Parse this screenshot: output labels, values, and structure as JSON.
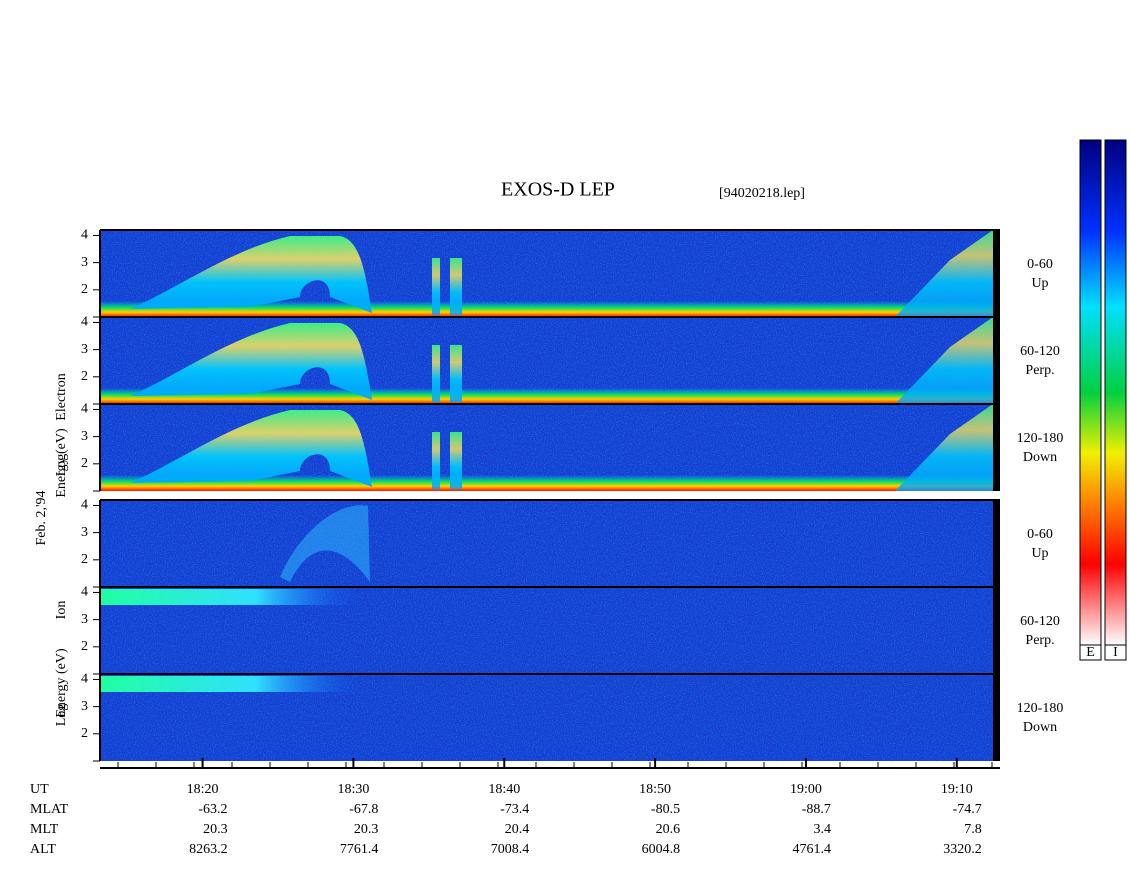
{
  "chart_data": {
    "type": "spectrogram",
    "title": "EXOS-D LEP",
    "file": "[94020218.lep]",
    "date": "Feb. 2,'94",
    "groups": [
      {
        "ylabel": [
          "Log",
          "Electron",
          "Energy (eV)"
        ],
        "panels": [
          {
            "angle": "0-60",
            "direction": "Up"
          },
          {
            "angle": "60-120",
            "direction": "Perp."
          },
          {
            "angle": "120-180",
            "direction": "Down"
          }
        ]
      },
      {
        "ylabel": [
          "Log",
          "Ion",
          "Energy (eV)"
        ],
        "panels": [
          {
            "angle": "0-60",
            "direction": "Up"
          },
          {
            "angle": "60-120",
            "direction": "Perp."
          },
          {
            "angle": "120-180",
            "direction": "Down"
          }
        ]
      }
    ],
    "ylim": [
      1,
      4.2
    ],
    "yticks": [
      2,
      3,
      4
    ],
    "xlim": [
      13.2,
      72.4
    ],
    "xticks": [
      {
        "value": 20,
        "label": "18:20"
      },
      {
        "value": 30,
        "label": "18:30"
      },
      {
        "value": 40,
        "label": "18:40"
      },
      {
        "value": 50,
        "label": "18:50"
      },
      {
        "value": 60,
        "label": "19:00"
      },
      {
        "value": 70,
        "label": "19:10"
      }
    ],
    "xlabel": "UT",
    "ephemeris": [
      {
        "name": "MLAT",
        "values": [
          -63.2,
          -67.8,
          -73.4,
          -80.5,
          -88.7,
          -74.7
        ]
      },
      {
        "name": "MLT",
        "values": [
          20.3,
          20.3,
          20.4,
          20.6,
          3.4,
          7.8
        ]
      },
      {
        "name": "ALT",
        "values": [
          8263.2,
          7761.4,
          7008.4,
          6004.8,
          4761.4,
          3320.2
        ]
      }
    ],
    "colorbars": [
      "E",
      "I"
    ]
  }
}
